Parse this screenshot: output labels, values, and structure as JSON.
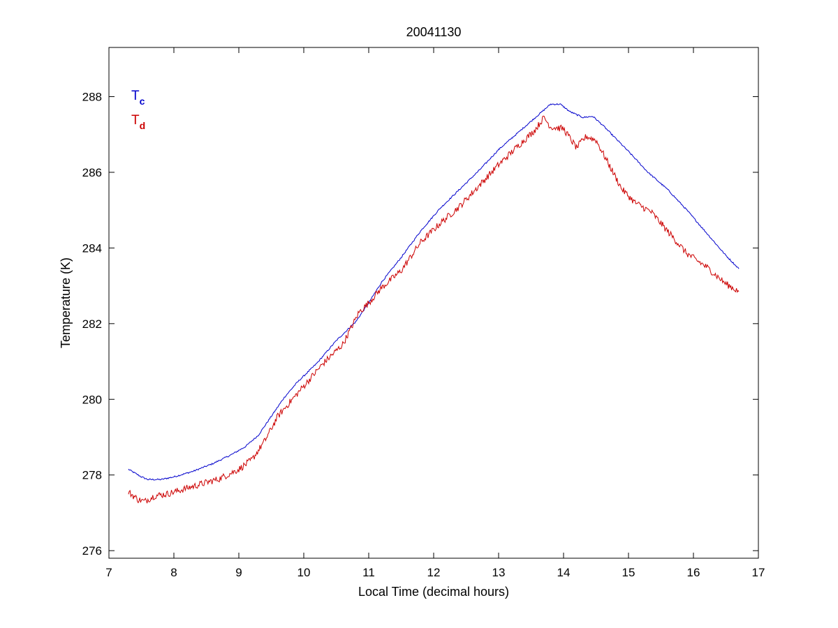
{
  "chart_data": {
    "type": "line",
    "title": "20041130",
    "xlabel": "Local Time (decimal hours)",
    "ylabel": "Temperature (K)",
    "xlim": [
      7,
      17
    ],
    "ylim": [
      275.8,
      289.3
    ],
    "xticks": [
      7,
      8,
      9,
      10,
      11,
      12,
      13,
      14,
      15,
      16,
      17
    ],
    "yticks": [
      276,
      278,
      280,
      282,
      284,
      286,
      288
    ],
    "grid": false,
    "legend_placement": "top-left",
    "legend": [
      {
        "main": "T",
        "sub": "c",
        "color": "#0000cc"
      },
      {
        "main": "T",
        "sub": "d",
        "color": "#cc0000"
      }
    ],
    "series": [
      {
        "color": "#0000cc",
        "noise": 0.02,
        "x": [
          7.3,
          7.5,
          7.6,
          7.8,
          8.0,
          8.3,
          8.6,
          8.9,
          9.1,
          9.3,
          9.5,
          9.7,
          9.9,
          10.2,
          10.5,
          10.8,
          11.0,
          11.2,
          11.5,
          11.8,
          12.1,
          12.4,
          12.7,
          13.0,
          13.3,
          13.6,
          13.8,
          13.95,
          14.1,
          14.3,
          14.45,
          14.6,
          14.8,
          15.0,
          15.3,
          15.6,
          15.9,
          16.2,
          16.5,
          16.7
        ],
        "y": [
          278.15,
          277.95,
          277.88,
          277.88,
          277.95,
          278.1,
          278.3,
          278.55,
          278.75,
          279.05,
          279.55,
          280.05,
          280.45,
          280.95,
          281.55,
          282.05,
          282.55,
          283.1,
          283.75,
          284.45,
          285.05,
          285.55,
          286.05,
          286.6,
          287.05,
          287.5,
          287.8,
          287.8,
          287.6,
          287.45,
          287.48,
          287.25,
          286.9,
          286.55,
          286.0,
          285.55,
          285.0,
          284.4,
          283.8,
          283.45
        ]
      },
      {
        "color": "#cc0000",
        "noise": 0.09,
        "x": [
          7.3,
          7.45,
          7.55,
          7.7,
          7.9,
          8.1,
          8.4,
          8.7,
          9.0,
          9.2,
          9.4,
          9.6,
          9.8,
          10.0,
          10.3,
          10.6,
          10.85,
          11.0,
          11.2,
          11.5,
          11.8,
          12.1,
          12.4,
          12.7,
          13.0,
          13.3,
          13.55,
          13.7,
          13.8,
          14.0,
          14.2,
          14.35,
          14.5,
          14.7,
          14.9,
          15.1,
          15.35,
          15.6,
          15.9,
          16.2,
          16.5,
          16.7
        ],
        "y": [
          277.55,
          277.35,
          277.3,
          277.45,
          277.5,
          277.6,
          277.75,
          277.9,
          278.15,
          278.4,
          278.9,
          279.55,
          279.95,
          280.35,
          280.95,
          281.45,
          282.3,
          282.55,
          282.95,
          283.4,
          284.15,
          284.65,
          285.1,
          285.65,
          286.2,
          286.7,
          287.1,
          287.45,
          287.2,
          287.15,
          286.65,
          286.95,
          286.85,
          286.2,
          285.55,
          285.2,
          284.95,
          284.45,
          283.85,
          283.5,
          283.05,
          282.85
        ]
      }
    ]
  }
}
